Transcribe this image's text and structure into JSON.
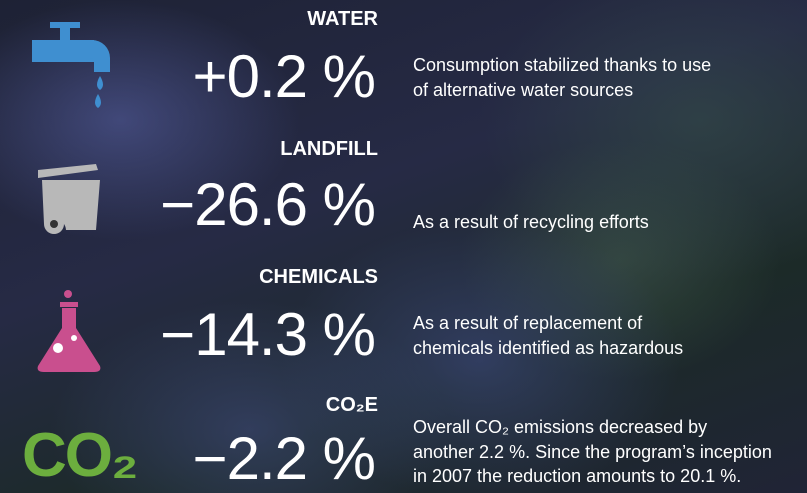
{
  "items": [
    {
      "title": "WATER",
      "change": "+0.2 %",
      "description": [
        "Consumption stabilized thanks to use",
        "of alternative water sources"
      ]
    },
    {
      "title": "LANDFILL",
      "change": "−26.6 %",
      "description": [
        "As a result of recycling efforts"
      ]
    },
    {
      "title": "CHEMICALS",
      "change": "−14.3 %",
      "description": [
        "As a result of replacement of",
        "chemicals identified as hazardous"
      ]
    },
    {
      "title": "CO₂E",
      "change": "−2.2 %",
      "icon_text": "CO₂",
      "description": [
        "Overall CO₂ emissions decreased by",
        "another 2.2 %. Since the program’s inception",
        "in 2007 the reduction amounts to 20.1 %."
      ]
    }
  ]
}
